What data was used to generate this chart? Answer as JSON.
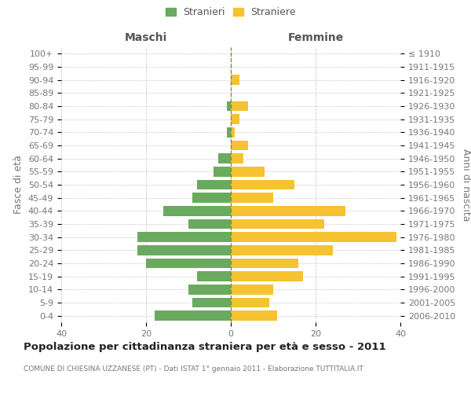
{
  "age_groups": [
    "0-4",
    "5-9",
    "10-14",
    "15-19",
    "20-24",
    "25-29",
    "30-34",
    "35-39",
    "40-44",
    "45-49",
    "50-54",
    "55-59",
    "60-64",
    "65-69",
    "70-74",
    "75-79",
    "80-84",
    "85-89",
    "90-94",
    "95-99",
    "100+"
  ],
  "birth_years": [
    "2006-2010",
    "2001-2005",
    "1996-2000",
    "1991-1995",
    "1986-1990",
    "1981-1985",
    "1976-1980",
    "1971-1975",
    "1966-1970",
    "1961-1965",
    "1956-1960",
    "1951-1955",
    "1946-1950",
    "1941-1945",
    "1936-1940",
    "1931-1935",
    "1926-1930",
    "1921-1925",
    "1916-1920",
    "1911-1915",
    "≤ 1910"
  ],
  "maschi": [
    18,
    9,
    10,
    8,
    20,
    22,
    22,
    10,
    16,
    9,
    8,
    4,
    3,
    0,
    1,
    0,
    1,
    0,
    0,
    0,
    0
  ],
  "femmine": [
    11,
    9,
    10,
    17,
    16,
    24,
    39,
    22,
    27,
    10,
    15,
    8,
    3,
    4,
    1,
    2,
    4,
    0,
    2,
    0,
    0
  ],
  "maschi_color": "#6aaa5e",
  "femmine_color": "#f5c231",
  "background_color": "#ffffff",
  "grid_color": "#cccccc",
  "title": "Popolazione per cittadinanza straniera per età e sesso - 2011",
  "subtitle": "COMUNE DI CHIESINA UZZANESE (PT) - Dati ISTAT 1° gennaio 2011 - Elaborazione TUTTITALIA.IT",
  "left_label": "Maschi",
  "right_label": "Femmine",
  "ylabel_left": "Fasce di età",
  "ylabel_right": "Anni di nascita",
  "legend_stranieri": "Stranieri",
  "legend_straniere": "Straniere",
  "xlim": 40,
  "xticks": [
    -40,
    -20,
    0,
    20,
    40
  ],
  "xticklabels": [
    "40",
    "20",
    "0",
    "20",
    "40"
  ]
}
